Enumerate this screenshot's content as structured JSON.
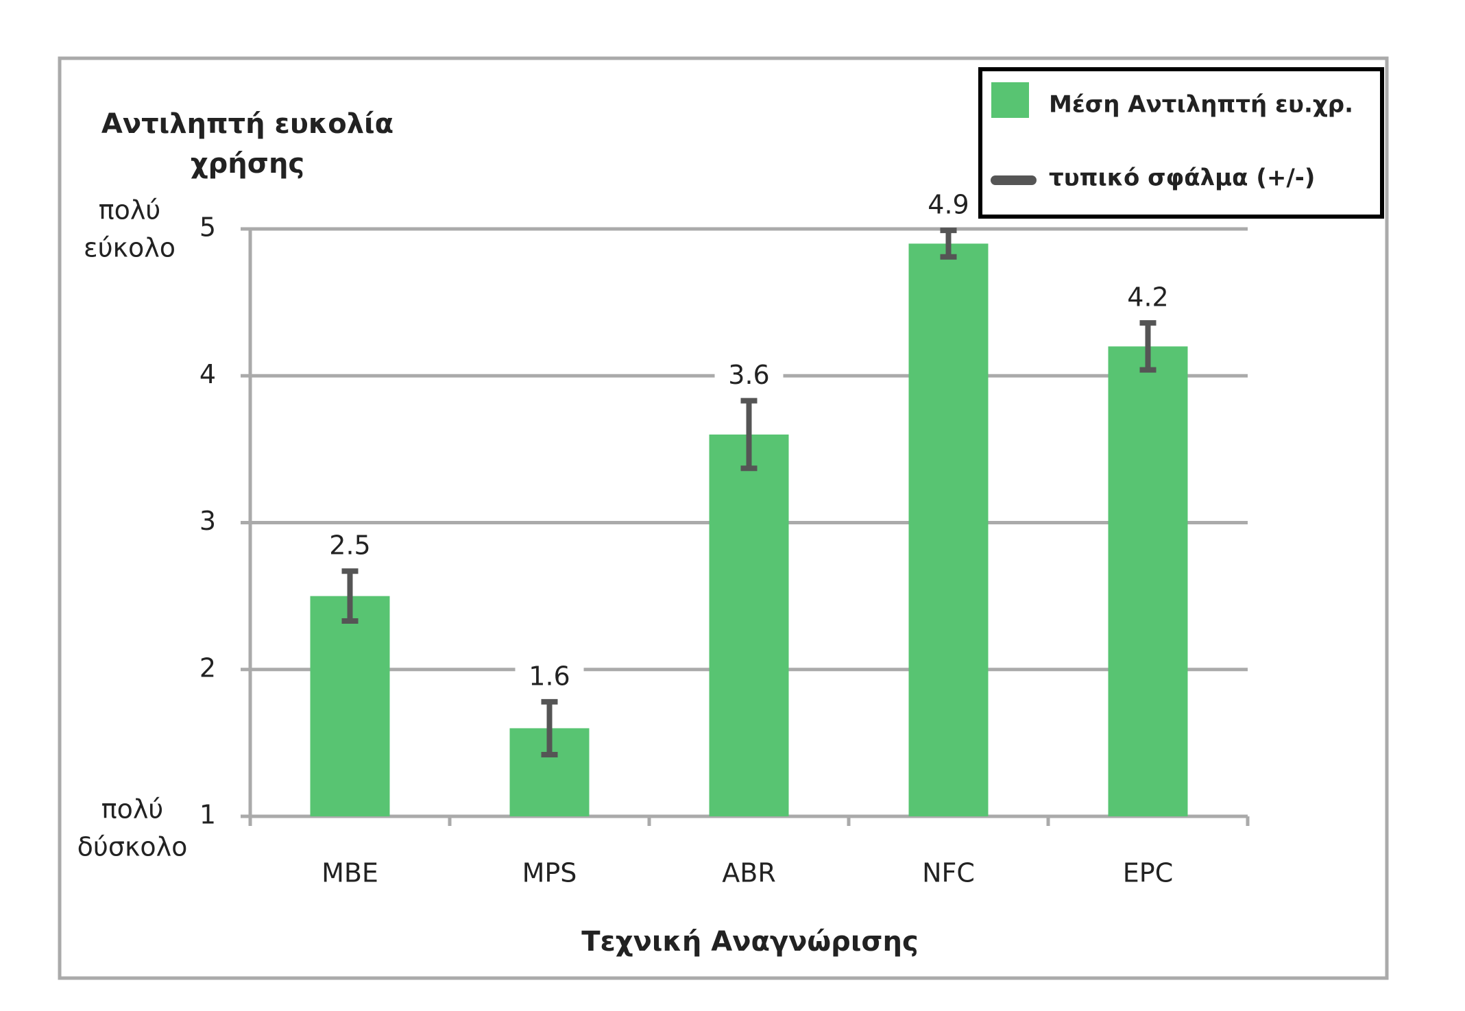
{
  "chart_data": {
    "type": "bar",
    "y_axis_title": [
      "Αντιληπτή ευκολία",
      "χρήσης"
    ],
    "x_axis_title": "Τεχνική Αναγνώρισης",
    "annotations": {
      "top": [
        "πολύ",
        "εύκολο"
      ],
      "bottom": [
        "πολύ",
        "δύσκολο"
      ]
    },
    "categories": [
      "MBE",
      "MPS",
      "ABR",
      "NFC",
      "EPC"
    ],
    "series": [
      {
        "name": "Μέση Αντιληπτή ευ.χρ.",
        "color": "#58c472",
        "values": [
          2.5,
          1.6,
          3.6,
          4.9,
          4.2
        ],
        "errors": [
          0.17,
          0.18,
          0.23,
          0.09,
          0.16
        ],
        "error_name": "τυπικό σφάλμα (+/-)",
        "error_color": "#555555"
      }
    ],
    "ylim": [
      1,
      5
    ],
    "yticks": [
      1,
      2,
      3,
      4,
      5
    ],
    "grid": true,
    "legend": "top-right"
  }
}
